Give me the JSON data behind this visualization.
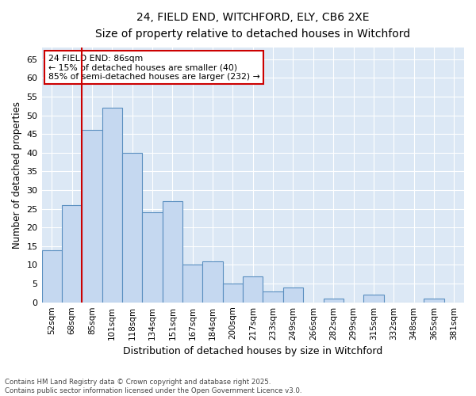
{
  "title_line1": "24, FIELD END, WITCHFORD, ELY, CB6 2XE",
  "title_line2": "Size of property relative to detached houses in Witchford",
  "xlabel": "Distribution of detached houses by size in Witchford",
  "ylabel": "Number of detached properties",
  "categories": [
    "52sqm",
    "68sqm",
    "85sqm",
    "101sqm",
    "118sqm",
    "134sqm",
    "151sqm",
    "167sqm",
    "184sqm",
    "200sqm",
    "217sqm",
    "233sqm",
    "249sqm",
    "266sqm",
    "282sqm",
    "299sqm",
    "315sqm",
    "332sqm",
    "348sqm",
    "365sqm",
    "381sqm"
  ],
  "values": [
    14,
    26,
    46,
    52,
    40,
    24,
    27,
    10,
    11,
    5,
    7,
    3,
    4,
    0,
    1,
    0,
    2,
    0,
    0,
    1,
    0
  ],
  "bar_color": "#c5d8f0",
  "bar_edge_color": "#5a8fc0",
  "vline_x_index": 2,
  "vline_color": "#cc0000",
  "annotation_line1": "24 FIELD END: 86sqm",
  "annotation_line2": "← 15% of detached houses are smaller (40)",
  "annotation_line3": "85% of semi-detached houses are larger (232) →",
  "annotation_box_color": "#cc0000",
  "ylim": [
    0,
    68
  ],
  "yticks": [
    0,
    5,
    10,
    15,
    20,
    25,
    30,
    35,
    40,
    45,
    50,
    55,
    60,
    65
  ],
  "background_color": "#dce8f5",
  "grid_color": "#ffffff",
  "footer_line1": "Contains HM Land Registry data © Crown copyright and database right 2025.",
  "footer_line2": "Contains public sector information licensed under the Open Government Licence v3.0."
}
